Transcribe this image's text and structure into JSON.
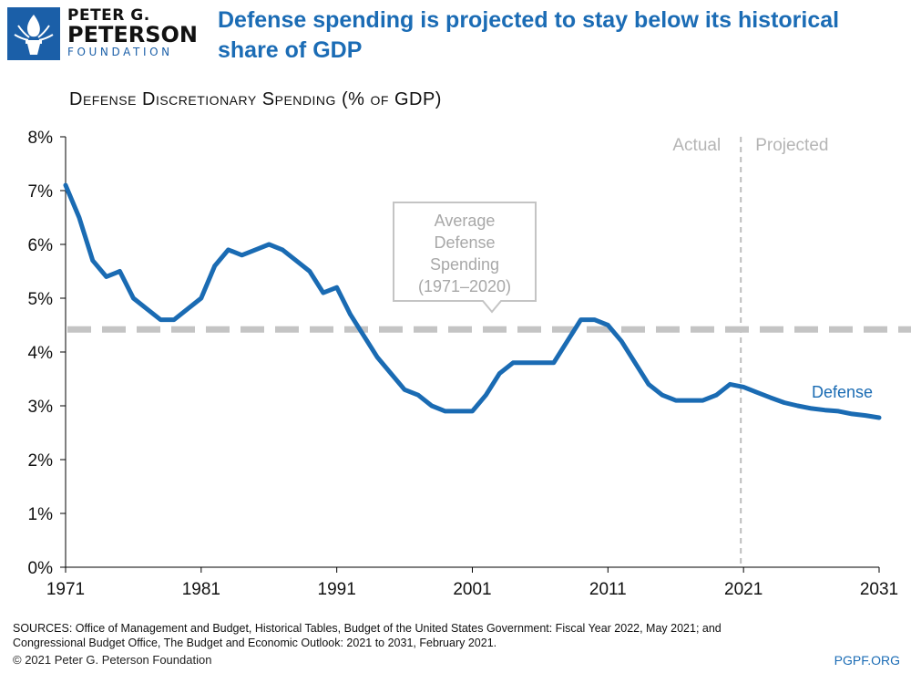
{
  "logo": {
    "line1": "PETER G.",
    "line2": "PETERSON",
    "line3": "FOUNDATION"
  },
  "headline": "Defense spending is projected to stay below its historical share of GDP",
  "colors": {
    "series": "#1a6bb3",
    "average": "#c4c4c4",
    "headline": "#1b6cb5",
    "divider": "#bdbdbd"
  },
  "chart_data": {
    "type": "line",
    "title": "Defense Discretionary Spending (% of GDP)",
    "xlabel": "",
    "ylabel": "",
    "xlim": [
      1971,
      2031
    ],
    "ylim": [
      0,
      8
    ],
    "x_ticks": [
      "1971",
      "1981",
      "1991",
      "2001",
      "2011",
      "2021",
      "2031"
    ],
    "y_ticks": [
      "0%",
      "1%",
      "2%",
      "3%",
      "4%",
      "5%",
      "6%",
      "7%",
      "8%"
    ],
    "grid": false,
    "series": [
      {
        "name": "Defense",
        "x": [
          1971,
          1972,
          1973,
          1974,
          1975,
          1976,
          1977,
          1978,
          1979,
          1980,
          1981,
          1982,
          1983,
          1984,
          1985,
          1986,
          1987,
          1988,
          1989,
          1990,
          1991,
          1992,
          1993,
          1994,
          1995,
          1996,
          1997,
          1998,
          1999,
          2000,
          2001,
          2002,
          2003,
          2004,
          2005,
          2006,
          2007,
          2008,
          2009,
          2010,
          2011,
          2012,
          2013,
          2014,
          2015,
          2016,
          2017,
          2018,
          2019,
          2020,
          2021,
          2022,
          2023,
          2024,
          2025,
          2026,
          2027,
          2028,
          2029,
          2030,
          2031
        ],
        "y": [
          7.1,
          6.5,
          5.7,
          5.4,
          5.5,
          5.0,
          4.8,
          4.6,
          4.6,
          4.8,
          5.0,
          5.6,
          5.9,
          5.8,
          5.9,
          6.0,
          5.9,
          5.7,
          5.5,
          5.1,
          5.2,
          4.7,
          4.3,
          3.9,
          3.6,
          3.3,
          3.2,
          3.0,
          2.9,
          2.9,
          2.9,
          3.2,
          3.6,
          3.8,
          3.8,
          3.8,
          3.8,
          4.2,
          4.6,
          4.6,
          4.5,
          4.2,
          3.8,
          3.4,
          3.2,
          3.1,
          3.1,
          3.1,
          3.2,
          3.4,
          3.35,
          3.25,
          3.15,
          3.06,
          3.0,
          2.95,
          2.92,
          2.9,
          2.85,
          2.82,
          2.78
        ]
      }
    ],
    "average": {
      "value": 4.42,
      "label_lines": [
        "Average",
        "Defense",
        "Spending",
        "(1971–2020)"
      ]
    },
    "divider": {
      "x": 2020.8,
      "left_label": "Actual",
      "right_label": "Projected"
    },
    "series_label": "Defense"
  },
  "footer": {
    "sources_line1": "SOURCES: Office of Management and Budget, Historical Tables, Budget of the United States Government: Fiscal Year 2022, May 2021; and",
    "sources_line2": "Congressional Budget Office, The Budget and Economic Outlook: 2021 to 2031, February 2021.",
    "copyright": "© 2021 Peter G. Peterson Foundation",
    "site": "PGPF.ORG"
  }
}
